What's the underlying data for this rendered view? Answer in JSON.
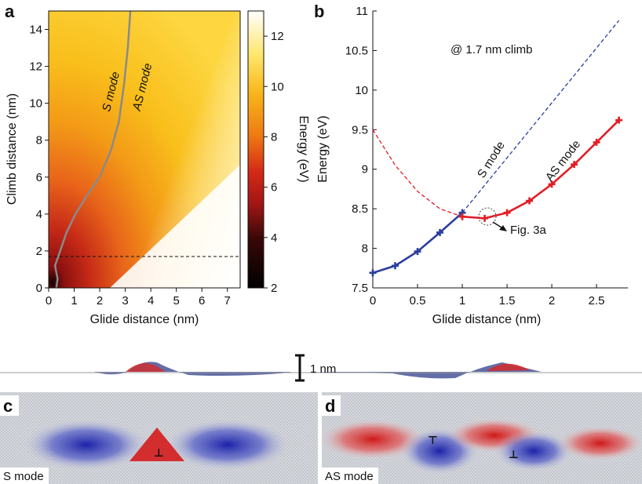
{
  "panels": {
    "a": "a",
    "b": "b",
    "c": "c",
    "d": "d"
  },
  "scale_bar_label": "1 nm",
  "panel_c_label": "S mode",
  "panel_d_label": "AS mode",
  "chart_data": [
    {
      "type": "heatmap",
      "xlabel": "Glide distance (nm)",
      "ylabel": "Climb distance (nm)",
      "xlim": [
        0,
        7.5
      ],
      "ylim": [
        0,
        15
      ],
      "x_ticks": [
        "0",
        "1",
        "2",
        "3",
        "4",
        "5",
        "6",
        "7"
      ],
      "y_ticks": [
        "0",
        "2",
        "4",
        "6",
        "8",
        "10",
        "12",
        "14"
      ],
      "colorbar": {
        "label": "Energy (eV)",
        "range": [
          2,
          13
        ],
        "ticks": [
          "2",
          "4",
          "6",
          "8",
          "10",
          "12"
        ],
        "colors": [
          "#000000",
          "#7a0f0f",
          "#d42a17",
          "#ee7a13",
          "#f8b519",
          "#fde66b",
          "#ffffff"
        ]
      },
      "annotations": [
        "S mode",
        "AS mode"
      ],
      "mode_boundary": {
        "x": [
          0.3,
          0.35,
          0.25,
          0.45,
          0.7,
          1.05,
          1.5,
          2.0,
          2.45,
          2.75,
          2.95,
          3.1,
          3.2
        ],
        "y": [
          0,
          0.5,
          1.2,
          2,
          3,
          4,
          5,
          6,
          7.5,
          9,
          11,
          13,
          15
        ]
      },
      "dashed_line_y": 1.7,
      "grid": false
    },
    {
      "type": "line",
      "xlabel": "Glide distance (nm)",
      "ylabel": "Energy (eV)",
      "xlim": [
        0,
        2.85
      ],
      "ylim": [
        7.5,
        11
      ],
      "x_ticks": [
        "0",
        "0.5",
        "1",
        "1.5",
        "2",
        "2.5"
      ],
      "y_ticks": [
        "7.5",
        "8",
        "8.5",
        "9",
        "9.5",
        "10",
        "10.5",
        "11"
      ],
      "annotation": "@ 1.7 nm climb",
      "fig_label": "Fig. 3a",
      "series": [
        {
          "name": "S mode",
          "color": "#2a3f9e",
          "style": "solid",
          "x": [
            0,
            0.25,
            0.5,
            0.75,
            1.0
          ],
          "y": [
            7.69,
            7.78,
            7.96,
            8.2,
            8.45
          ]
        },
        {
          "name": "AS mode",
          "color": "#e21d25",
          "style": "solid",
          "x": [
            1.0,
            1.25,
            1.5,
            1.75,
            2.0,
            2.25,
            2.5,
            2.75
          ],
          "y": [
            8.4,
            8.38,
            8.45,
            8.6,
            8.81,
            9.06,
            9.34,
            9.62
          ]
        },
        {
          "color": "#2a3f9e",
          "style": "dashed",
          "x": [
            1.0,
            2.75
          ],
          "y": [
            8.45,
            10.88
          ]
        },
        {
          "color": "#e21d25",
          "style": "dashed",
          "x": [
            0,
            0.25,
            0.5,
            0.75,
            1.0
          ],
          "y": [
            9.5,
            9.05,
            8.72,
            8.5,
            8.4
          ]
        }
      ],
      "grid": false
    }
  ]
}
